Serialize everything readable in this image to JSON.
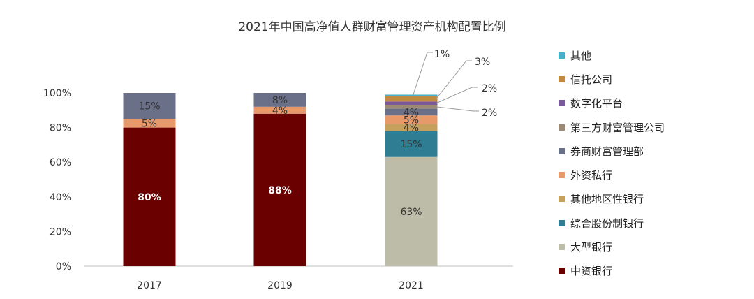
{
  "chart_data": {
    "type": "bar",
    "stacked": true,
    "title": "2021年中国高净值人群财富管理资产机构配置比例",
    "categories": [
      "2017",
      "2019",
      "2021"
    ],
    "ylim": [
      0,
      100
    ],
    "y_ticks": [
      "0%",
      "20%",
      "40%",
      "60%",
      "80%",
      "100%"
    ],
    "gridlines": false,
    "legend_position": "right",
    "series": [
      {
        "name": "中资银行",
        "color": "#6b0000",
        "values": [
          80,
          88,
          0
        ],
        "labels": [
          "80%",
          "88%",
          ""
        ],
        "label_color": "#ffffff"
      },
      {
        "name": "大型银行",
        "color": "#bdbca9",
        "values": [
          0,
          0,
          63
        ],
        "labels": [
          "",
          "",
          "63%"
        ],
        "label_color": "#333333"
      },
      {
        "name": "综合股份制银行",
        "color": "#2e7d93",
        "values": [
          0,
          0,
          15
        ],
        "labels": [
          "",
          "",
          "15%"
        ],
        "label_color": "#333333"
      },
      {
        "name": "其他地区性银行",
        "color": "#c5a15d",
        "values": [
          0,
          0,
          4
        ],
        "labels": [
          "",
          "",
          "4%"
        ],
        "label_color": "#333333"
      },
      {
        "name": "外资私行",
        "color": "#e8996a",
        "values": [
          5,
          4,
          5
        ],
        "labels": [
          "5%",
          "4%",
          "5%"
        ],
        "label_color": "#333333"
      },
      {
        "name": "券商财富管理部",
        "color": "#6b7089",
        "values": [
          15,
          8,
          4
        ],
        "labels": [
          "15%",
          "8%",
          "4%"
        ],
        "label_color": "#333333"
      },
      {
        "name": "第三方财富管理公司",
        "color": "#9c8a76",
        "values": [
          0,
          0,
          2
        ],
        "labels": [
          "",
          "",
          ""
        ],
        "label_color": "#333333"
      },
      {
        "name": "数字化平台",
        "color": "#7a5a9a",
        "values": [
          0,
          0,
          2
        ],
        "labels": [
          "",
          "",
          ""
        ],
        "label_color": "#333333"
      },
      {
        "name": "信托公司",
        "color": "#c08a40",
        "values": [
          0,
          0,
          3
        ],
        "labels": [
          "",
          "",
          ""
        ],
        "label_color": "#333333"
      },
      {
        "name": "其他",
        "color": "#46afc9",
        "values": [
          0,
          0,
          1
        ],
        "labels": [
          "",
          "",
          ""
        ],
        "label_color": "#333333"
      }
    ],
    "callouts": [
      {
        "series": "其他",
        "category": "2021",
        "text": "1%"
      },
      {
        "series": "信托公司",
        "category": "2021",
        "text": "3%"
      },
      {
        "series": "数字化平台",
        "category": "2021",
        "text": "2%"
      },
      {
        "series": "第三方财富管理公司",
        "category": "2021",
        "text": "2%"
      }
    ],
    "legend_order": [
      "其他",
      "信托公司",
      "数字化平台",
      "第三方财富管理公司",
      "券商财富管理部",
      "外资私行",
      "其他地区性银行",
      "综合股份制银行",
      "大型银行",
      "中资银行"
    ]
  }
}
